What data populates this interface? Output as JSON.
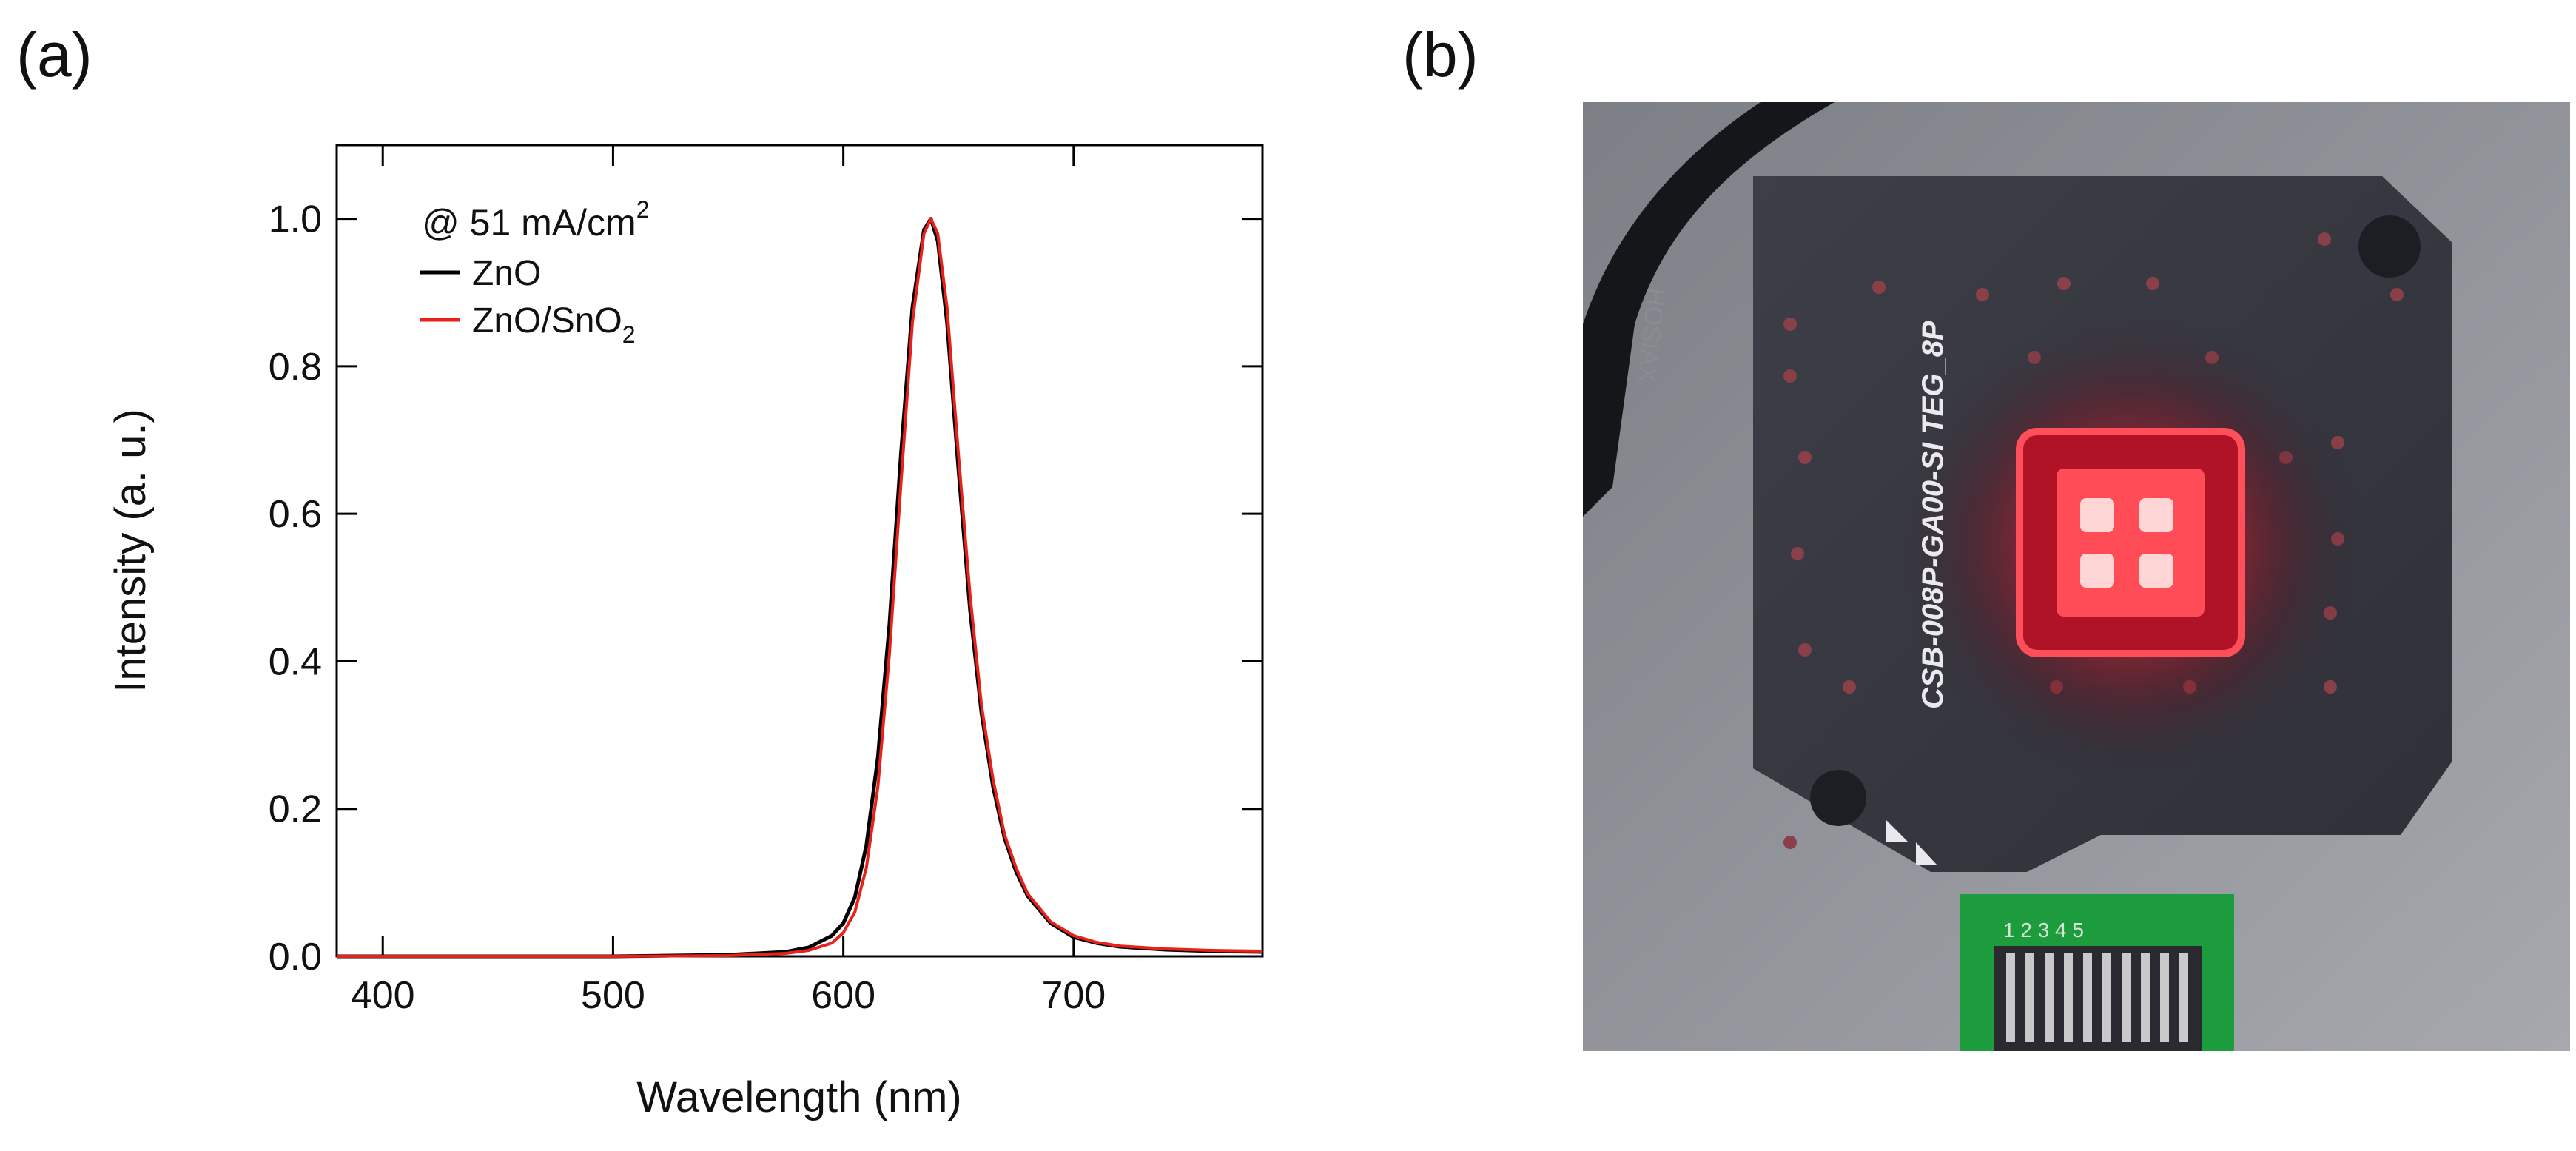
{
  "panels": {
    "a": "(a)",
    "b": "(b)"
  },
  "chart_data": {
    "type": "line",
    "title": "",
    "xlabel": "Wavelength (nm)",
    "ylabel": "Intensity (a. u.)",
    "xlim": [
      380,
      782
    ],
    "ylim": [
      0,
      1.1
    ],
    "xticks": [
      400,
      500,
      600,
      700
    ],
    "yticks": [
      0.0,
      0.2,
      0.4,
      0.6,
      0.8,
      1.0
    ],
    "xtick_labels": [
      "400",
      "500",
      "600",
      "700"
    ],
    "ytick_labels": [
      "0.0",
      "0.2",
      "0.4",
      "0.6",
      "0.8",
      "1.0"
    ],
    "annotation": {
      "prefix": "@ 51 mA/cm",
      "superscript": "2"
    },
    "legend": {
      "placement": "top-left",
      "entries": [
        {
          "label": "ZnO",
          "color": "#000000"
        },
        {
          "label": "ZnO/SnO",
          "subscript": "2",
          "color": "#e8221b"
        }
      ]
    },
    "series": [
      {
        "name": "ZnO",
        "color": "#000000",
        "x": [
          380,
          400,
          450,
          500,
          550,
          575,
          585,
          595,
          600,
          605,
          610,
          615,
          620,
          625,
          630,
          635,
          638,
          641,
          645,
          650,
          655,
          660,
          665,
          670,
          675,
          680,
          690,
          700,
          710,
          720,
          740,
          760,
          782
        ],
        "y": [
          0.0,
          0.0,
          0.0,
          0.0,
          0.002,
          0.006,
          0.012,
          0.028,
          0.045,
          0.08,
          0.15,
          0.27,
          0.45,
          0.68,
          0.88,
          0.985,
          1.0,
          0.97,
          0.86,
          0.66,
          0.47,
          0.33,
          0.23,
          0.16,
          0.115,
          0.082,
          0.045,
          0.026,
          0.018,
          0.013,
          0.009,
          0.007,
          0.006
        ]
      },
      {
        "name": "ZnO/SnO2",
        "color": "#e8221b",
        "x": [
          380,
          400,
          450,
          500,
          550,
          575,
          585,
          595,
          600,
          605,
          610,
          615,
          620,
          625,
          630,
          635,
          638,
          641,
          645,
          650,
          655,
          660,
          665,
          670,
          675,
          680,
          690,
          700,
          710,
          720,
          740,
          760,
          782
        ],
        "y": [
          0.0,
          0.0,
          0.0,
          0.0,
          0.001,
          0.004,
          0.008,
          0.018,
          0.032,
          0.06,
          0.12,
          0.23,
          0.41,
          0.64,
          0.86,
          0.98,
          1.0,
          0.98,
          0.88,
          0.68,
          0.49,
          0.34,
          0.24,
          0.165,
          0.12,
          0.085,
          0.047,
          0.028,
          0.019,
          0.014,
          0.01,
          0.008,
          0.007
        ]
      }
    ]
  },
  "photo": {
    "board_text": "CSB-008P-GA00-SI TEG_8P",
    "connector_text": "1 2 3 4 5",
    "cable_text": "HOSIAX"
  }
}
